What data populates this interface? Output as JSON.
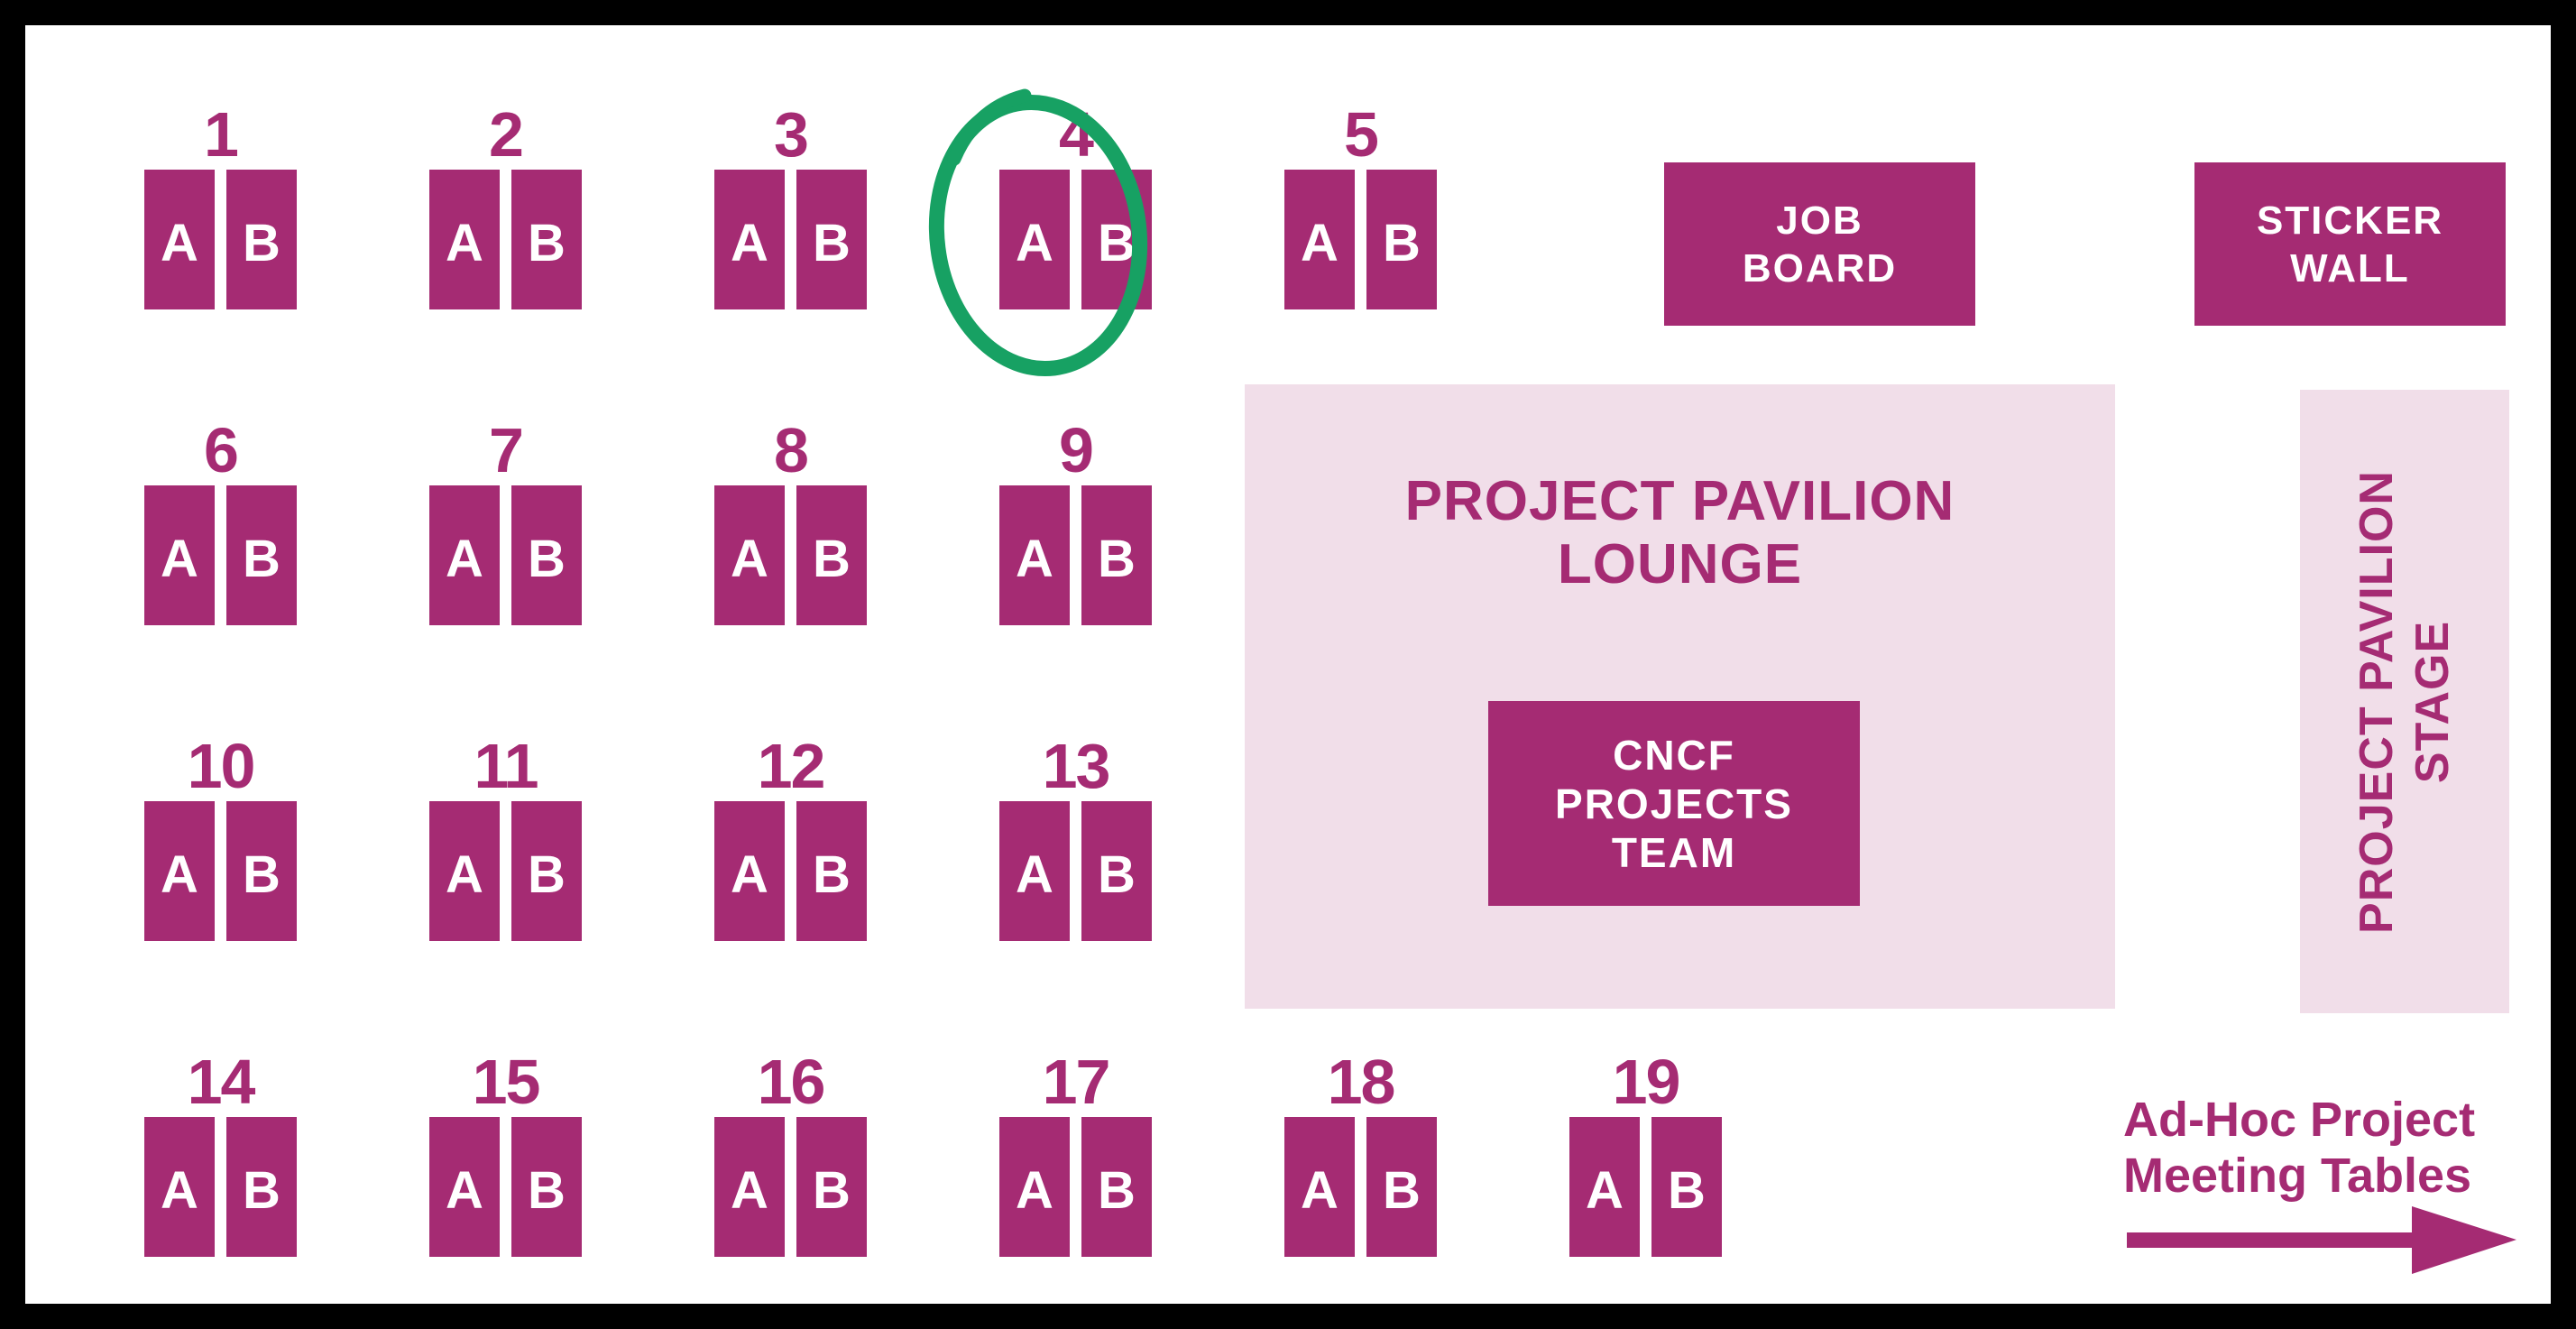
{
  "poster": {
    "colors": {
      "accent": "#A52B73",
      "area": "#F1DEE9",
      "highlight": "#17A163",
      "frame": "#000000",
      "background": "#FFFFFF"
    },
    "booths": [
      {
        "number": "1",
        "row": 0,
        "col": 0,
        "units": [
          "A",
          "B"
        ],
        "highlighted": false
      },
      {
        "number": "2",
        "row": 0,
        "col": 1,
        "units": [
          "A",
          "B"
        ],
        "highlighted": false
      },
      {
        "number": "3",
        "row": 0,
        "col": 2,
        "units": [
          "A",
          "B"
        ],
        "highlighted": false
      },
      {
        "number": "4",
        "row": 0,
        "col": 3,
        "units": [
          "A",
          "B"
        ],
        "highlighted": true
      },
      {
        "number": "5",
        "row": 0,
        "col": 4,
        "units": [
          "A",
          "B"
        ],
        "highlighted": false
      },
      {
        "number": "6",
        "row": 1,
        "col": 0,
        "units": [
          "A",
          "B"
        ],
        "highlighted": false
      },
      {
        "number": "7",
        "row": 1,
        "col": 1,
        "units": [
          "A",
          "B"
        ],
        "highlighted": false
      },
      {
        "number": "8",
        "row": 1,
        "col": 2,
        "units": [
          "A",
          "B"
        ],
        "highlighted": false
      },
      {
        "number": "9",
        "row": 1,
        "col": 3,
        "units": [
          "A",
          "B"
        ],
        "highlighted": false
      },
      {
        "number": "10",
        "row": 2,
        "col": 0,
        "units": [
          "A",
          "B"
        ],
        "highlighted": false
      },
      {
        "number": "11",
        "row": 2,
        "col": 1,
        "units": [
          "A",
          "B"
        ],
        "highlighted": false
      },
      {
        "number": "12",
        "row": 2,
        "col": 2,
        "units": [
          "A",
          "B"
        ],
        "highlighted": false
      },
      {
        "number": "13",
        "row": 2,
        "col": 3,
        "units": [
          "A",
          "B"
        ],
        "highlighted": false
      },
      {
        "number": "14",
        "row": 3,
        "col": 0,
        "units": [
          "A",
          "B"
        ],
        "highlighted": false
      },
      {
        "number": "15",
        "row": 3,
        "col": 1,
        "units": [
          "A",
          "B"
        ],
        "highlighted": false
      },
      {
        "number": "16",
        "row": 3,
        "col": 2,
        "units": [
          "A",
          "B"
        ],
        "highlighted": false
      },
      {
        "number": "17",
        "row": 3,
        "col": 3,
        "units": [
          "A",
          "B"
        ],
        "highlighted": false
      },
      {
        "number": "18",
        "row": 3,
        "col": 4,
        "units": [
          "A",
          "B"
        ],
        "highlighted": false
      },
      {
        "number": "19",
        "row": 3,
        "col": 5,
        "units": [
          "A",
          "B"
        ],
        "highlighted": false
      }
    ],
    "highlight_annotation": {
      "target_booth": "4",
      "shape": "hand-drawn circle"
    },
    "job_board": {
      "line1": "JOB",
      "line2": "BOARD"
    },
    "sticker_wall": {
      "line1": "STICKER",
      "line2": "WALL"
    },
    "lounge": {
      "line1": "PROJECT PAVILION",
      "line2": "LOUNGE"
    },
    "cncf_team": {
      "line1": "CNCF",
      "line2": "PROJECTS",
      "line3": "TEAM"
    },
    "stage": {
      "line1": "PROJECT PAVILION",
      "line2": "STAGE"
    },
    "adhoc": {
      "line1": "Ad-Hoc Project",
      "line2": "Meeting Tables"
    }
  }
}
